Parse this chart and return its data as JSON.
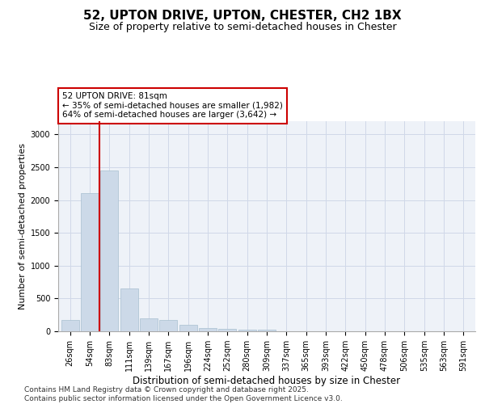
{
  "title1": "52, UPTON DRIVE, UPTON, CHESTER, CH2 1BX",
  "title2": "Size of property relative to semi-detached houses in Chester",
  "xlabel": "Distribution of semi-detached houses by size in Chester",
  "ylabel": "Number of semi-detached properties",
  "categories": [
    "26sqm",
    "54sqm",
    "83sqm",
    "111sqm",
    "139sqm",
    "167sqm",
    "196sqm",
    "224sqm",
    "252sqm",
    "280sqm",
    "309sqm",
    "337sqm",
    "365sqm",
    "393sqm",
    "422sqm",
    "450sqm",
    "478sqm",
    "506sqm",
    "535sqm",
    "563sqm",
    "591sqm"
  ],
  "values": [
    175,
    2100,
    2450,
    650,
    200,
    175,
    100,
    55,
    40,
    25,
    20,
    0,
    0,
    0,
    0,
    0,
    0,
    0,
    0,
    0,
    0
  ],
  "bar_color": "#ccd9e8",
  "bar_edge_color": "#a8bfd0",
  "vline_color": "#cc0000",
  "annotation_text": "52 UPTON DRIVE: 81sqm\n← 35% of semi-detached houses are smaller (1,982)\n64% of semi-detached houses are larger (3,642) →",
  "annotation_box_color": "#ffffff",
  "annotation_box_edge_color": "#cc0000",
  "ylim": [
    0,
    3200
  ],
  "yticks": [
    0,
    500,
    1000,
    1500,
    2000,
    2500,
    3000
  ],
  "grid_color": "#d0d8e8",
  "bg_color": "#eef2f8",
  "footnote1": "Contains HM Land Registry data © Crown copyright and database right 2025.",
  "footnote2": "Contains public sector information licensed under the Open Government Licence v3.0.",
  "title_fontsize": 11,
  "subtitle_fontsize": 9,
  "annotation_fontsize": 7.5,
  "ylabel_fontsize": 8,
  "xlabel_fontsize": 8.5,
  "footnote_fontsize": 6.5,
  "tick_fontsize": 7
}
